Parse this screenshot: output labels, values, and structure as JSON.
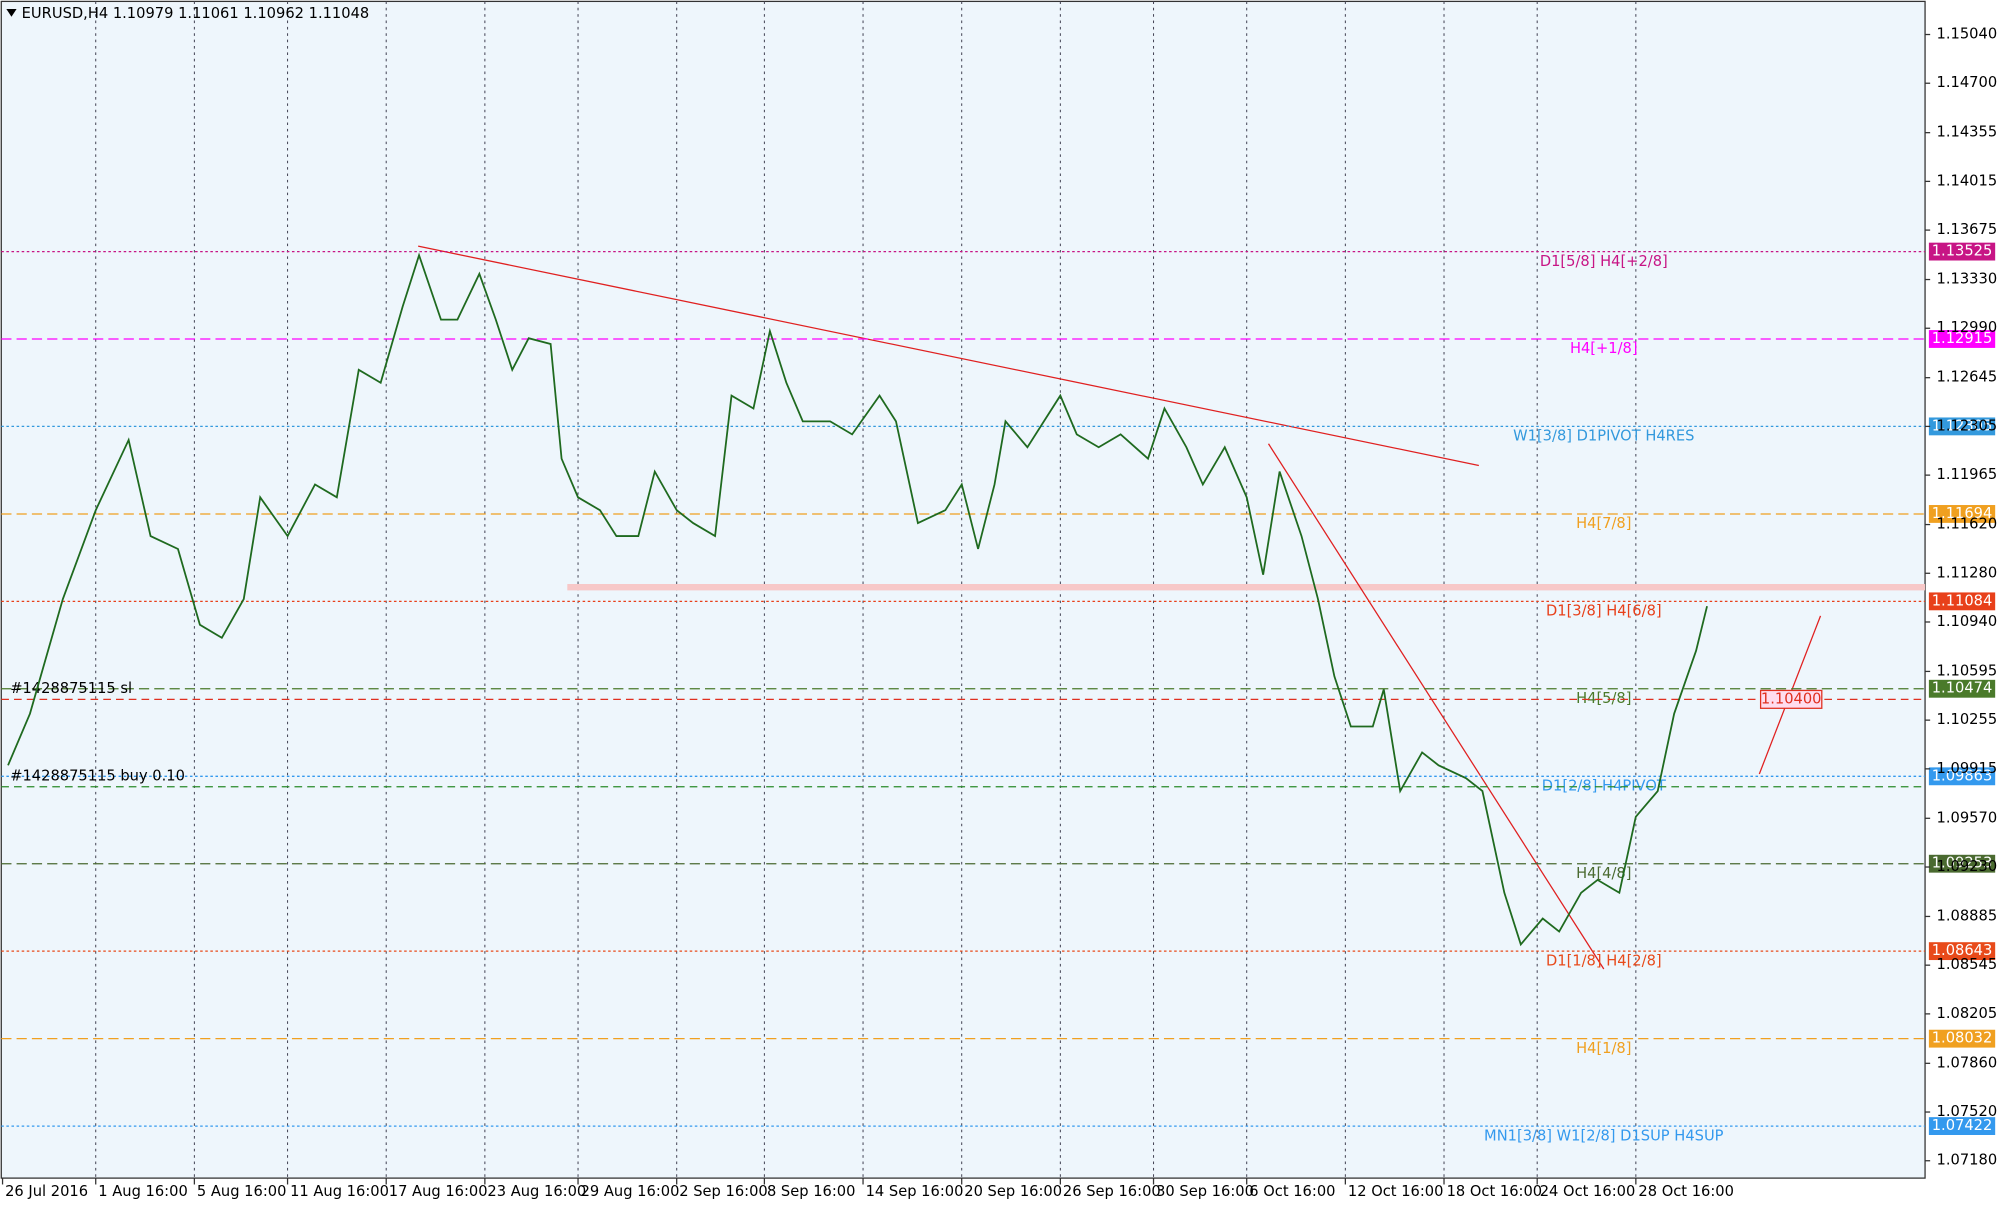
{
  "chart_data": {
    "type": "line",
    "header": "EURUSD,H4  1.10979 1.11061 1.10962 1.11048",
    "xlim": [
      0,
      351
    ],
    "xticks": [
      {
        "value": 0,
        "label": "26 Jul 2016"
      },
      {
        "value": 17,
        "label": "1 Aug 16:00"
      },
      {
        "value": 35,
        "label": "5 Aug 16:00"
      },
      {
        "value": 52,
        "label": "11 Aug 16:00"
      },
      {
        "value": 70,
        "label": "17 Aug 16:00"
      },
      {
        "value": 88,
        "label": "23 Aug 16:00"
      },
      {
        "value": 105,
        "label": "29 Aug 16:00"
      },
      {
        "value": 123,
        "label": "2 Sep 16:00"
      },
      {
        "value": 139,
        "label": "8 Sep 16:00"
      },
      {
        "value": 157,
        "label": "14 Sep 16:00"
      },
      {
        "value": 175,
        "label": "20 Sep 16:00"
      },
      {
        "value": 193,
        "label": "26 Sep 16:00"
      },
      {
        "value": 210,
        "label": "30 Sep 16:00"
      },
      {
        "value": 227,
        "label": "6 Oct 16:00"
      },
      {
        "value": 245,
        "label": "12 Oct 16:00"
      },
      {
        "value": 263,
        "label": "18 Oct 16:00"
      },
      {
        "value": 280,
        "label": "24 Oct 16:00"
      },
      {
        "value": 298,
        "label": "28 Oct 16:00"
      }
    ],
    "ylim": [
      1.0705,
      1.1528
    ],
    "yticks": [
      {
        "value": 1.1504,
        "label": "1.15040"
      },
      {
        "value": 1.147,
        "label": "1.14700"
      },
      1.14355,
      1.14015,
      1.13675,
      {
        "value": 1.1333,
        "label": "1.13330"
      },
      {
        "value": 1.1299,
        "label": "1.12990"
      },
      1.12645,
      1.12305,
      1.11965,
      {
        "value": 1.1162,
        "label": "1.11620"
      },
      {
        "value": 1.1128,
        "label": "1.11280"
      },
      {
        "value": 1.1094,
        "label": "1.10940"
      },
      1.10595,
      1.10255,
      1.09915,
      {
        "value": 1.0957,
        "label": "1.09570"
      },
      {
        "value": 1.0923,
        "label": "1.09230"
      },
      1.08885,
      1.08545,
      1.08205,
      {
        "value": 1.0786,
        "label": "1.07860"
      },
      {
        "value": 1.0752,
        "label": "1.07520"
      },
      {
        "value": 1.0718,
        "label": "1.07180"
      }
    ],
    "grid": "vertical",
    "x": [
      1,
      5,
      11,
      17,
      23,
      27,
      32,
      36,
      40,
      44,
      47,
      52,
      57,
      61,
      65,
      69,
      73,
      76,
      80,
      83,
      87,
      90,
      93,
      96,
      100,
      102,
      105,
      109,
      112,
      116,
      119,
      123,
      126,
      130,
      133,
      137,
      140,
      143,
      146,
      151,
      155,
      160,
      163,
      167,
      172,
      175,
      178,
      181,
      183,
      187,
      190,
      193,
      196,
      200,
      204,
      209,
      212,
      216,
      219,
      223,
      227,
      230,
      233,
      237,
      240,
      243,
      246,
      250,
      252,
      255,
      259,
      262,
      267,
      270,
      274,
      277,
      281,
      284,
      288,
      291,
      295,
      298,
      302,
      305,
      309,
      311
    ],
    "series": [
      {
        "name": "EURUSD,H4",
        "color": "#1f6a1f",
        "values": [
          1.0994,
          1.103,
          1.111,
          1.1172,
          1.1221,
          1.1154,
          1.1145,
          1.1092,
          1.1083,
          1.111,
          1.1181,
          1.1154,
          1.119,
          1.1181,
          1.127,
          1.1261,
          1.1314,
          1.135,
          1.1305,
          1.1305,
          1.1337,
          1.1305,
          1.127,
          1.1292,
          1.1288,
          1.1208,
          1.1181,
          1.1172,
          1.1154,
          1.1154,
          1.1199,
          1.1172,
          1.1163,
          1.1154,
          1.1252,
          1.1243,
          1.1297,
          1.1261,
          1.1234,
          1.1234,
          1.1225,
          1.1252,
          1.1234,
          1.1163,
          1.1172,
          1.119,
          1.1145,
          1.119,
          1.1234,
          1.1216,
          1.1234,
          1.1252,
          1.1225,
          1.1216,
          1.1225,
          1.1208,
          1.1243,
          1.1216,
          1.119,
          1.1216,
          1.1181,
          1.1127,
          1.1199,
          1.1154,
          1.111,
          1.1056,
          1.1021,
          1.1021,
          1.1047,
          1.0976,
          1.1003,
          1.0994,
          1.0985,
          1.0976,
          1.0905,
          1.0869,
          1.0887,
          1.0878,
          1.0905,
          1.0914,
          1.0905,
          1.0958,
          1.0976,
          1.103,
          1.1074,
          1.1105
        ]
      }
    ],
    "levels": [
      {
        "name": "D1[5/8] H4[+2/8]",
        "value": 1.13525,
        "color": "#c71585",
        "style": "dotted"
      },
      {
        "name": "H4[+1/8]",
        "value": 1.12915,
        "color": "#ff00ff",
        "style": "dashed"
      },
      {
        "name": "W1[3/8] D1PIVOT H4RES",
        "value": 1.12305,
        "color": "#3399dd",
        "style": "dotted"
      },
      {
        "name": "H4[7/8]",
        "value": 1.11694,
        "color": "#f0a020",
        "style": "dashed"
      },
      {
        "name": "D1[3/8] H4[6/8]",
        "value": 1.11084,
        "color": "#e8401a",
        "style": "dotted"
      },
      {
        "name": "H4[5/8]",
        "value": 1.10474,
        "color": "#4a7a2a",
        "style": "dashed"
      },
      {
        "name": "D1[2/8] H4PIVOT",
        "value": 1.09863,
        "color": "#3399ee",
        "style": "dotted"
      },
      {
        "name": "H4[4/8]",
        "value": 1.09253,
        "color": "#4a6a30",
        "style": "dashed"
      },
      {
        "name": "D1[1/8] H4[2/8]",
        "value": 1.08643,
        "color": "#e84a1a",
        "style": "dotted"
      },
      {
        "name": "H4[1/8]",
        "value": 1.08032,
        "color": "#f0a020",
        "style": "dashed"
      },
      {
        "name": "MN1[3/8] W1[2/8] D1SUP H4SUP",
        "value": 1.07422,
        "color": "#3399ee",
        "style": "dotted"
      }
    ],
    "orders": [
      {
        "label": "#1428875115 sl",
        "price": 1.104,
        "price_label": "1.10400",
        "color": "#e03020"
      },
      {
        "label": "#1428875115 buy 0.10",
        "price": 1.0979,
        "color": "#2a8a2a"
      }
    ]
  }
}
